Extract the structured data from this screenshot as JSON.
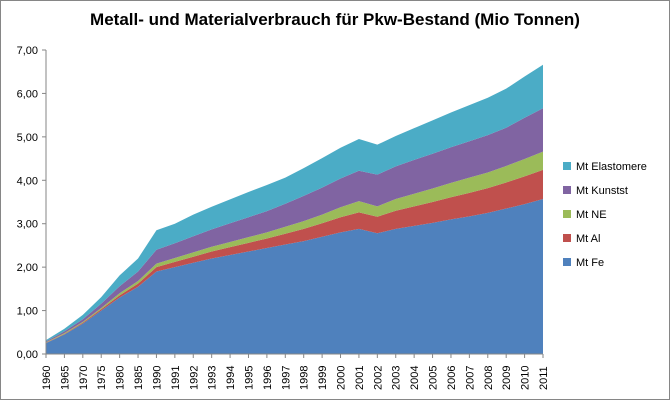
{
  "chart_data": {
    "type": "area",
    "stacked": true,
    "title": "Metall- und Materialverbrauch für Pkw-Bestand (Mio Tonnen)",
    "xlabel": "",
    "ylabel": "",
    "ylim": [
      0,
      7
    ],
    "yticks": [
      "0,00",
      "1,00",
      "2,00",
      "3,00",
      "4,00",
      "5,00",
      "6,00",
      "7,00"
    ],
    "grid": false,
    "legend_position": "right",
    "categories": [
      "1960",
      "1965",
      "1970",
      "1975",
      "1980",
      "1985",
      "1990",
      "1991",
      "1992",
      "1993",
      "1994",
      "1995",
      "1996",
      "1997",
      "1998",
      "1999",
      "2000",
      "2001",
      "2002",
      "2003",
      "2004",
      "2005",
      "2006",
      "2007",
      "2008",
      "2009",
      "2010",
      "2011"
    ],
    "series": [
      {
        "name": "Mt Fe",
        "color": "#4f81bd",
        "values": [
          0.25,
          0.45,
          0.7,
          1.0,
          1.3,
          1.55,
          1.9,
          2.0,
          2.1,
          2.2,
          2.28,
          2.36,
          2.44,
          2.52,
          2.6,
          2.7,
          2.8,
          2.88,
          2.78,
          2.88,
          2.95,
          3.02,
          3.1,
          3.17,
          3.25,
          3.35,
          3.45,
          3.57
        ]
      },
      {
        "name": "Mt Al",
        "color": "#c0504d",
        "values": [
          0.01,
          0.01,
          0.02,
          0.03,
          0.05,
          0.07,
          0.1,
          0.12,
          0.14,
          0.16,
          0.18,
          0.2,
          0.22,
          0.25,
          0.28,
          0.31,
          0.35,
          0.38,
          0.38,
          0.42,
          0.45,
          0.48,
          0.51,
          0.54,
          0.57,
          0.6,
          0.64,
          0.67
        ]
      },
      {
        "name": "Mt NE",
        "color": "#9bbb59",
        "values": [
          0.01,
          0.02,
          0.02,
          0.03,
          0.05,
          0.06,
          0.08,
          0.09,
          0.1,
          0.11,
          0.12,
          0.13,
          0.14,
          0.16,
          0.18,
          0.2,
          0.23,
          0.26,
          0.24,
          0.27,
          0.29,
          0.31,
          0.33,
          0.35,
          0.36,
          0.38,
          0.4,
          0.42
        ]
      },
      {
        "name": "Mt Kunstst",
        "color": "#8064a2",
        "values": [
          0.02,
          0.04,
          0.06,
          0.1,
          0.16,
          0.22,
          0.32,
          0.34,
          0.37,
          0.4,
          0.43,
          0.46,
          0.49,
          0.53,
          0.58,
          0.62,
          0.66,
          0.7,
          0.73,
          0.75,
          0.78,
          0.8,
          0.82,
          0.84,
          0.86,
          0.88,
          0.95,
          1.0
        ]
      },
      {
        "name": "Mt Elastomere",
        "color": "#4bacc6",
        "values": [
          0.03,
          0.06,
          0.1,
          0.15,
          0.25,
          0.3,
          0.45,
          0.45,
          0.5,
          0.52,
          0.55,
          0.58,
          0.6,
          0.6,
          0.64,
          0.68,
          0.71,
          0.73,
          0.69,
          0.7,
          0.73,
          0.77,
          0.8,
          0.83,
          0.86,
          0.9,
          0.95,
          1.0
        ]
      }
    ]
  }
}
